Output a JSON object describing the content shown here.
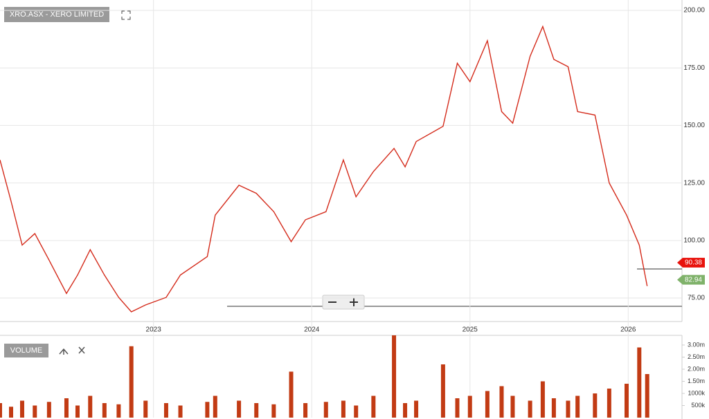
{
  "chart_data": [
    {
      "type": "line",
      "title": "XRO.ASX - XERO LIMITED",
      "x": [
        2022.03,
        2022.1,
        2022.17,
        2022.25,
        2022.34,
        2022.45,
        2022.52,
        2022.6,
        2022.69,
        2022.78,
        2022.86,
        2022.95,
        2023.08,
        2023.17,
        2023.34,
        2023.39,
        2023.54,
        2023.65,
        2023.76,
        2023.87,
        2023.96,
        2024.09,
        2024.2,
        2024.28,
        2024.39,
        2024.52,
        2024.59,
        2024.66,
        2024.83,
        2024.92,
        2025.0,
        2025.11,
        2025.2,
        2025.27,
        2025.38,
        2025.46,
        2025.53,
        2025.62,
        2025.68,
        2025.79,
        2025.88,
        2025.99,
        2026.07,
        2026.12
      ],
      "series": [
        {
          "color": "#d42a1a",
          "values": [
            135,
            117,
            98,
            103,
            91.5,
            77,
            85,
            96,
            85,
            75.3,
            69,
            72,
            75.3,
            85,
            93,
            111,
            124,
            120.5,
            112.5,
            99.5,
            109,
            112.5,
            135,
            119,
            130,
            140,
            132,
            143,
            149.6,
            177,
            169,
            186.8,
            156,
            151,
            180,
            193,
            178.7,
            175.5,
            156,
            154.5,
            125,
            111,
            98,
            80.2
          ]
        }
      ],
      "xlim": [
        2022.03,
        2026.34
      ],
      "xticks": [
        2023,
        2024,
        2025,
        2026
      ],
      "ylim": [
        64.8,
        204.5
      ],
      "yticks": [
        {
          "value": 75,
          "label": "75.00"
        },
        {
          "value": 100,
          "label": "100.00"
        },
        {
          "value": 125,
          "label": "125.00"
        },
        {
          "value": 150,
          "label": "150.00"
        },
        {
          "value": 175,
          "label": "175.00"
        },
        {
          "value": 200,
          "label": "200.00"
        }
      ],
      "grid": true,
      "price_tags": [
        {
          "value": 90.38,
          "color": "#e8120c"
        },
        {
          "value": 82.94,
          "color": "#7fb26a"
        }
      ]
    },
    {
      "type": "bar",
      "title": "VOLUME",
      "color": "#c23b14",
      "x": [
        2022.03,
        2022.1,
        2022.17,
        2022.25,
        2022.34,
        2022.45,
        2022.52,
        2022.6,
        2022.69,
        2022.78,
        2022.86,
        2022.95,
        2023.08,
        2023.17,
        2023.34,
        2023.39,
        2023.54,
        2023.65,
        2023.76,
        2023.87,
        2023.96,
        2024.09,
        2024.2,
        2024.28,
        2024.39,
        2024.52,
        2024.59,
        2024.66,
        2024.83,
        2024.92,
        2025.0,
        2025.11,
        2025.2,
        2025.27,
        2025.38,
        2025.46,
        2025.53,
        2025.62,
        2025.68,
        2025.79,
        2025.88,
        2025.99,
        2026.07,
        2026.12
      ],
      "values": [
        600000,
        450000,
        700000,
        500000,
        650000,
        800000,
        500000,
        900000,
        600000,
        550000,
        2950000,
        700000,
        600000,
        500000,
        650000,
        900000,
        700000,
        600000,
        550000,
        1900000,
        600000,
        650000,
        700000,
        500000,
        900000,
        3400000,
        600000,
        700000,
        2200000,
        800000,
        900000,
        1100000,
        1300000,
        900000,
        700000,
        1500000,
        800000,
        700000,
        900000,
        1000000,
        1200000,
        1400000,
        2900000,
        1800000
      ],
      "xlim": [
        2022.03,
        2026.34
      ],
      "ylim": [
        0,
        3400000
      ],
      "yticks": [
        {
          "value": 500000,
          "label": "500k"
        },
        {
          "value": 1000000,
          "label": "1000k"
        },
        {
          "value": 1500000,
          "label": "1.50m"
        },
        {
          "value": 2000000,
          "label": "2.00m"
        },
        {
          "value": 2500000,
          "label": "2.50m"
        },
        {
          "value": 3000000,
          "label": "3.00m"
        }
      ]
    }
  ]
}
